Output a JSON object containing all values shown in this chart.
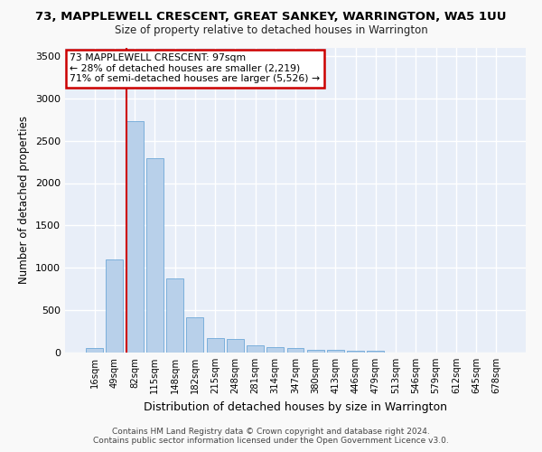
{
  "title": "73, MAPPLEWELL CRESCENT, GREAT SANKEY, WARRINGTON, WA5 1UU",
  "subtitle": "Size of property relative to detached houses in Warrington",
  "xlabel": "Distribution of detached houses by size in Warrington",
  "ylabel": "Number of detached properties",
  "bar_color": "#b8d0ea",
  "bar_edge_color": "#6ea8d8",
  "background_color": "#e8eef8",
  "grid_color": "#ffffff",
  "categories": [
    "16sqm",
    "49sqm",
    "82sqm",
    "115sqm",
    "148sqm",
    "182sqm",
    "215sqm",
    "248sqm",
    "281sqm",
    "314sqm",
    "347sqm",
    "380sqm",
    "413sqm",
    "446sqm",
    "479sqm",
    "513sqm",
    "546sqm",
    "579sqm",
    "612sqm",
    "645sqm",
    "678sqm"
  ],
  "values": [
    50,
    1100,
    2730,
    2290,
    870,
    420,
    170,
    165,
    90,
    60,
    50,
    35,
    30,
    25,
    20,
    0,
    0,
    0,
    0,
    0,
    0
  ],
  "ylim": [
    0,
    3600
  ],
  "yticks": [
    0,
    500,
    1000,
    1500,
    2000,
    2500,
    3000,
    3500
  ],
  "property_label": "73 MAPPLEWELL CRESCENT: 97sqm",
  "annotation_line1": "← 28% of detached houses are smaller (2,219)",
  "annotation_line2": "71% of semi-detached houses are larger (5,526) →",
  "vline_x_index": 2,
  "annotation_box_color": "#ffffff",
  "annotation_box_edge": "#cc0000",
  "vline_color": "#cc0000",
  "footer_line1": "Contains HM Land Registry data © Crown copyright and database right 2024.",
  "footer_line2": "Contains public sector information licensed under the Open Government Licence v3.0.",
  "fig_bg": "#f9f9f9"
}
